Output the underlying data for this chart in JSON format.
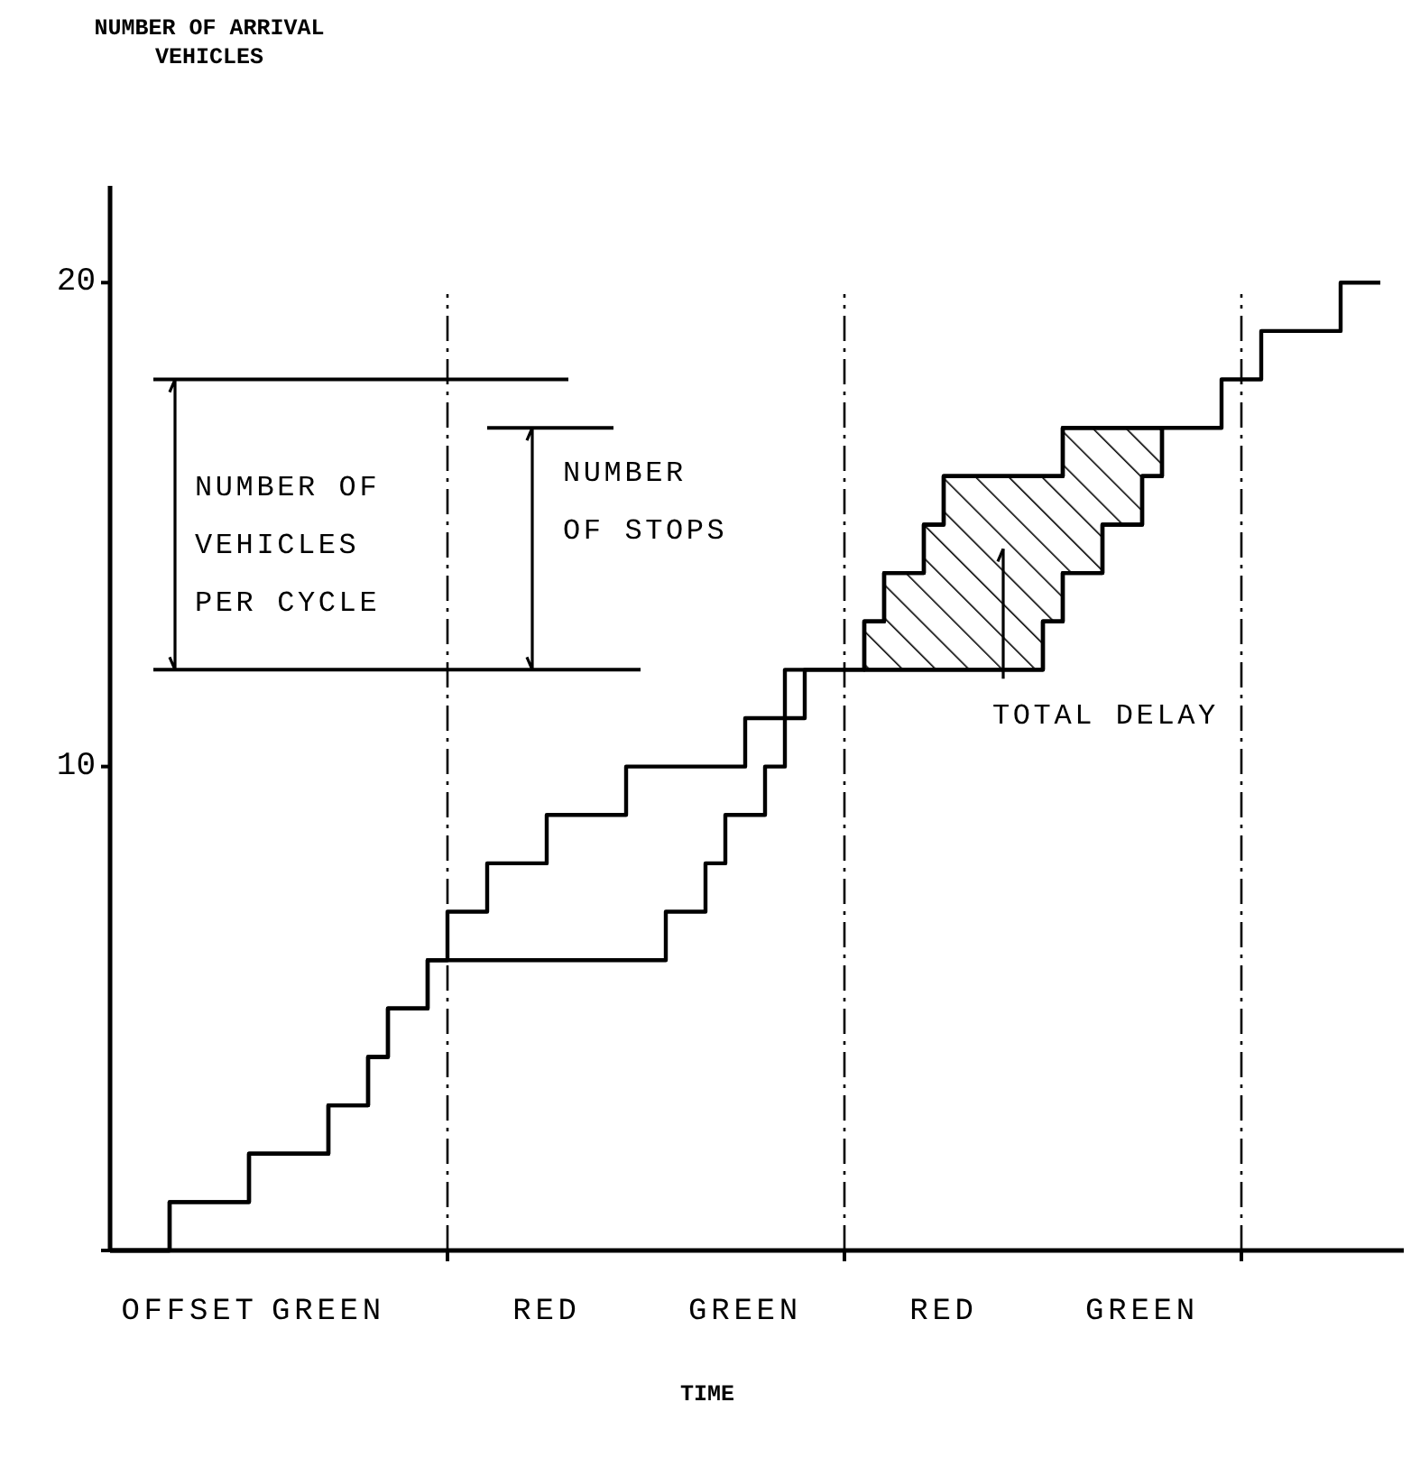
{
  "chart_data": {
    "type": "step",
    "xlabel": "TIME",
    "categories": [
      null,
      null,
      null,
      null,
      "OFFSET",
      null,
      null,
      null,
      null,
      null,
      null,
      "GREEN",
      null,
      null,
      null,
      null,
      null,
      null,
      null,
      null,
      null,
      null,
      "RED",
      null,
      null,
      null,
      null,
      null,
      null,
      null,
      null,
      null,
      "GREEN",
      null,
      null,
      null,
      null,
      null,
      null,
      null,
      null,
      null,
      "RED",
      null,
      null,
      null,
      null,
      null,
      null,
      null,
      null,
      null,
      "GREEN",
      null,
      null,
      null,
      null,
      null,
      null,
      null,
      null,
      null,
      null,
      null,
      null
    ],
    "ylim": [
      0,
      22
    ],
    "yticks": [
      {
        "value": 0,
        "label": null
      },
      10,
      20
    ],
    "series": [
      {
        "color": "#000000",
        "values": [
          0,
          0,
          0,
          1,
          1,
          1,
          1,
          2,
          2,
          2,
          2,
          3,
          3,
          4,
          5,
          5,
          6,
          7,
          7,
          8,
          8,
          8,
          9,
          9,
          9,
          9,
          10,
          10,
          10,
          10,
          10,
          10,
          11,
          11,
          11,
          12,
          12,
          12,
          13,
          14,
          14,
          15,
          16,
          16,
          16,
          16,
          16,
          16,
          17,
          17,
          17,
          17,
          17,
          17,
          17,
          17,
          18,
          18,
          19,
          19,
          19,
          19,
          20,
          20,
          20
        ]
      },
      {
        "color": "#000000",
        "values": [
          0,
          0,
          0,
          1,
          1,
          1,
          1,
          2,
          2,
          2,
          2,
          3,
          3,
          4,
          5,
          5,
          6,
          6,
          6,
          6,
          6,
          6,
          6,
          6,
          6,
          6,
          6,
          6,
          7,
          7,
          8,
          9,
          9,
          10,
          12,
          12,
          12,
          12,
          12,
          12,
          12,
          12,
          12,
          12,
          12,
          12,
          12,
          13,
          14,
          14,
          15,
          15,
          16,
          17,
          null,
          null,
          null,
          null,
          null,
          null,
          null,
          null,
          null,
          null,
          null
        ],
        "upper": [
          null,
          null,
          null,
          null,
          null,
          null,
          null,
          null,
          null,
          null,
          null,
          null,
          null,
          null,
          null,
          null,
          null,
          null,
          null,
          null,
          null,
          null,
          null,
          null,
          null,
          null,
          null,
          null,
          null,
          null,
          null,
          null,
          null,
          null,
          null,
          null,
          null,
          null,
          13,
          14,
          14,
          15,
          16,
          16,
          16,
          16,
          16,
          16,
          17,
          17,
          17,
          17,
          17,
          17,
          null,
          null,
          null,
          null,
          null,
          null,
          null,
          null,
          null,
          null,
          null
        ],
        "lower": [
          null,
          null,
          null,
          null,
          null,
          null,
          null,
          null,
          null,
          null,
          null,
          null,
          null,
          null,
          null,
          null,
          null,
          null,
          null,
          null,
          null,
          null,
          null,
          null,
          null,
          null,
          null,
          null,
          null,
          null,
          null,
          null,
          null,
          null,
          null,
          null,
          null,
          null,
          12,
          12,
          12,
          12,
          12,
          12,
          12,
          12,
          12,
          13,
          14,
          14,
          15,
          15,
          16,
          17,
          null,
          null,
          null,
          null,
          null,
          null,
          null,
          null,
          null,
          null,
          null
        ]
      }
    ],
    "ref_lines": [
      {
        "axis": "y",
        "value": 18
      },
      {
        "axis": "y",
        "value": 17
      },
      {
        "axis": "y",
        "value": 12
      }
    ],
    "annotations": [
      "NUMBER OF ARRIVAL VEHICLES",
      "NUMBER OF VEHICLES PER CYCLE",
      "NUMBER OF STOPS",
      "TOTAL DELAY"
    ],
    "line_style": "solid",
    "marker": "none"
  }
}
